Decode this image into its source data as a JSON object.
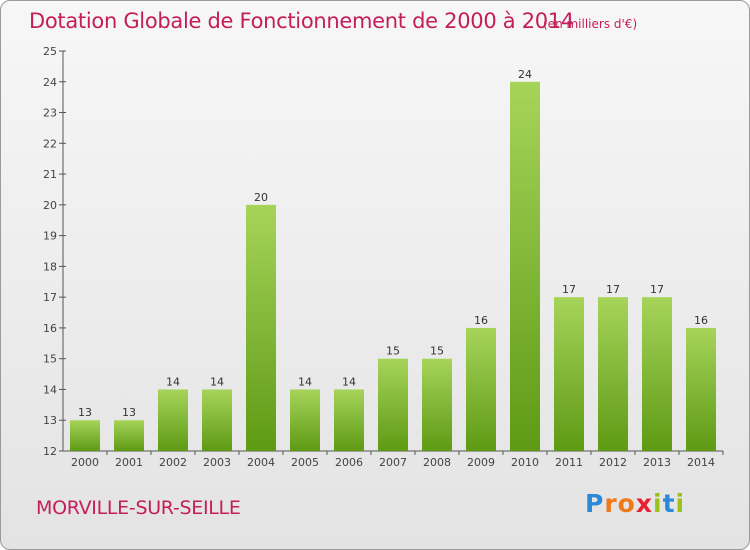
{
  "header": {
    "title": "Dotation Globale de Fonctionnement de 2000 à 2014",
    "unit": "(en milliers d'€)"
  },
  "footer": {
    "commune": "MORVILLE-SUR-SEILLE",
    "logo_letters": [
      {
        "ch": "P",
        "color": "#2a8ad8"
      },
      {
        "ch": "r",
        "color": "#f07818"
      },
      {
        "ch": "o",
        "color": "#f07818"
      },
      {
        "ch": "x",
        "color": "#e82030"
      },
      {
        "ch": "i",
        "color": "#9ac21a"
      },
      {
        "ch": "t",
        "color": "#2a8ad8"
      },
      {
        "ch": "i",
        "color": "#9ac21a"
      }
    ]
  },
  "chart_data": {
    "type": "bar",
    "categories": [
      "2000",
      "2001",
      "2002",
      "2003",
      "2004",
      "2005",
      "2006",
      "2007",
      "2008",
      "2009",
      "2010",
      "2011",
      "2012",
      "2013",
      "2014"
    ],
    "values": [
      13,
      13,
      14,
      14,
      20,
      14,
      14,
      15,
      15,
      16,
      24,
      17,
      17,
      17,
      16
    ],
    "title": "Dotation Globale de Fonctionnement de 2000 à 2014",
    "subtitle": "(en milliers d'€)",
    "ylim": [
      12,
      25
    ],
    "yticks": [
      12,
      13,
      14,
      15,
      16,
      17,
      18,
      19,
      20,
      21,
      22,
      23,
      24,
      25
    ],
    "grid": false,
    "bar_color_top": "#a6d45a",
    "bar_color_bottom": "#5e9a14"
  }
}
